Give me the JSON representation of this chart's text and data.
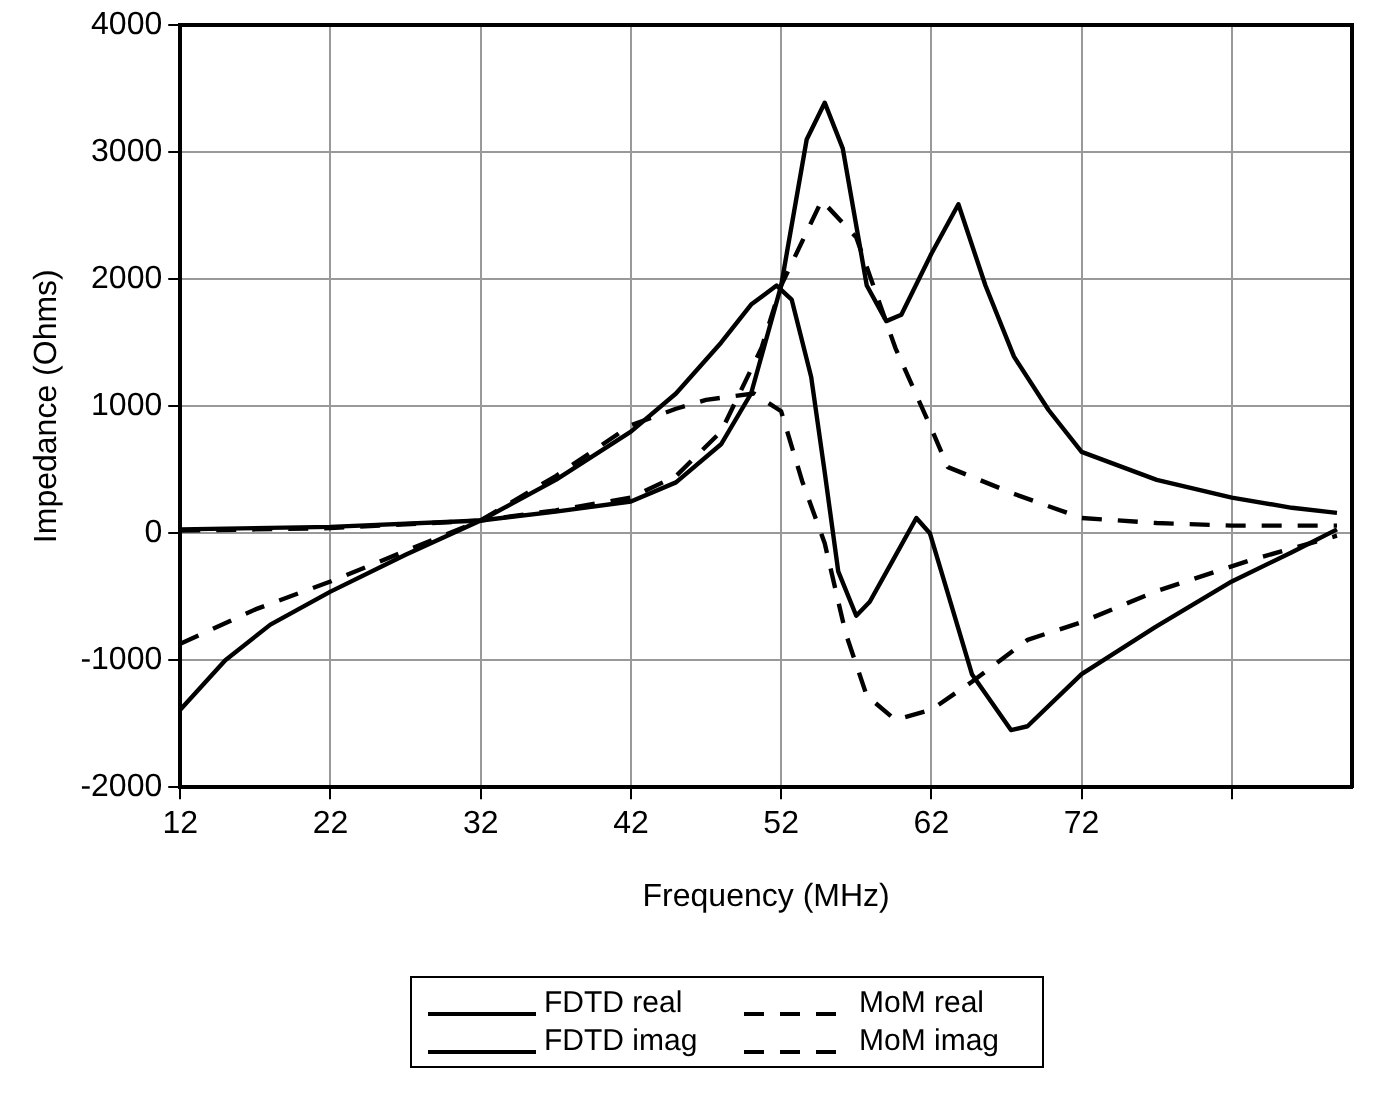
{
  "chart_data": {
    "type": "line",
    "xlabel": "Frequency (MHz)",
    "ylabel": "Impedance (Ohms)",
    "xlim": [
      12,
      90
    ],
    "xticks": [
      12,
      22,
      32,
      42,
      52,
      62,
      72,
      {
        "value": 82,
        "label": null
      }
    ],
    "ylim": [
      -2000,
      4000
    ],
    "yticks": [
      -2000,
      -1000,
      0,
      1000,
      2000,
      3000,
      4000
    ],
    "grid": true,
    "legend": "bottom",
    "marker": "none",
    "series": [
      {
        "name": "FDTD real",
        "color": "#000000",
        "line_style": "solid",
        "x": [
          12,
          22,
          32,
          37,
          42,
          45,
          48,
          50,
          52,
          53.7,
          54.9,
          56.1,
          57.7,
          59,
          60,
          62,
          63.8,
          65.6,
          67.5,
          69.8,
          72,
          77,
          82,
          86,
          89
        ],
        "values": [
          30,
          50,
          100,
          170,
          250,
          400,
          700,
          1100,
          1950,
          3100,
          3390,
          3030,
          1950,
          1670,
          1720,
          2200,
          2590,
          1950,
          1390,
          970,
          640,
          420,
          280,
          200,
          160
        ]
      },
      {
        "name": "MoM real",
        "color": "#000000",
        "line_style": "dashed",
        "x": [
          12,
          22,
          32,
          37,
          42,
          45,
          48,
          50.7,
          52,
          54.7,
          57,
          59.6,
          61.9,
          63.1,
          67.5,
          72,
          77,
          82,
          89
        ],
        "values": [
          20,
          40,
          100,
          180,
          280,
          450,
          800,
          1460,
          1950,
          2620,
          2330,
          1460,
          850,
          520,
          310,
          120,
          80,
          60,
          60
        ]
      },
      {
        "name": "FDTD imag",
        "color": "#000000",
        "line_style": "solid",
        "x": [
          12,
          15,
          18,
          22,
          27,
          32,
          37,
          42,
          45,
          48,
          50,
          51.7,
          52.7,
          54,
          54.9,
          55.8,
          57,
          57.9,
          59.5,
          61,
          61.9,
          64.7,
          67.3,
          68.4,
          72,
          76.9,
          82,
          86,
          89
        ],
        "values": [
          -1390,
          -1000,
          -720,
          -460,
          -170,
          100,
          420,
          800,
          1100,
          1500,
          1800,
          1950,
          1840,
          1230,
          480,
          -300,
          -650,
          -540,
          -200,
          120,
          0,
          -1110,
          -1550,
          -1520,
          -1110,
          -740,
          -380,
          -150,
          30
        ]
      },
      {
        "name": "MoM imag",
        "color": "#000000",
        "line_style": "dashed",
        "x": [
          12,
          17,
          22,
          27,
          32,
          37,
          42,
          45,
          47,
          50.2,
          52,
          53.4,
          54.9,
          56.3,
          57.7,
          59.6,
          62,
          64.7,
          68.4,
          72,
          76.9,
          83.3,
          89
        ],
        "values": [
          -870,
          -600,
          -380,
          -140,
          100,
          450,
          850,
          980,
          1050,
          1100,
          960,
          410,
          -80,
          -790,
          -1280,
          -1470,
          -1390,
          -1170,
          -840,
          -700,
          -460,
          -210,
          -20
        ]
      }
    ]
  }
}
